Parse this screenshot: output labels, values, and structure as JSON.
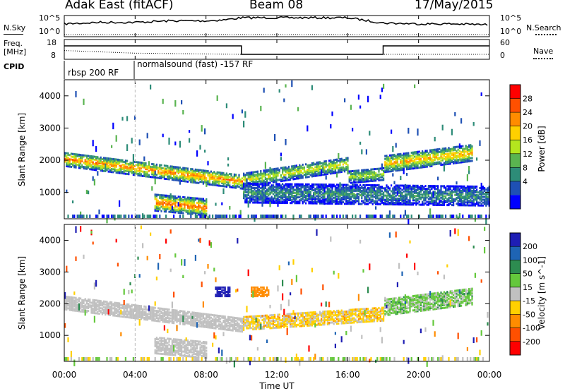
{
  "header": {
    "station": "Adak East (fitACF)",
    "beam": "Beam 08",
    "date": "17/May/2015"
  },
  "side_labels": {
    "nsky": "N.Sky",
    "nsearch": "N.Search",
    "freq_line1": "Freq.",
    "freq_line2": "[MHz]",
    "nave": "Nave",
    "cpid": "CPID"
  },
  "top_panels": {
    "noise_left_ticks": [
      "10^5",
      "10^0"
    ],
    "noise_right_ticks": [
      "10^5",
      "10^0"
    ],
    "freq_ticks": [
      "18",
      "8"
    ],
    "nave_ticks": [
      "60",
      "0"
    ],
    "cpid_labels": [
      "rbsp 200 RF",
      "normalsound (fast) -157 RF"
    ]
  },
  "axes": {
    "ylabel": "Slant Range [km]",
    "xlabel": "Time UT",
    "yticks": [
      "4000",
      "3000",
      "2000",
      "1000"
    ],
    "xticks": [
      "00:00",
      "04:00",
      "08:00",
      "12:00",
      "16:00",
      "20:00",
      "00:00"
    ]
  },
  "colorbars": {
    "power": {
      "label": "Power [dB]",
      "ticks": [
        "28",
        "24",
        "20",
        "16",
        "12",
        "8",
        "4"
      ],
      "colors": [
        "#ff0000",
        "#ff5000",
        "#ff8c00",
        "#ffd000",
        "#b4e61e",
        "#5ab450",
        "#2d8c78",
        "#1e50b4",
        "#0000ff"
      ]
    },
    "velocity": {
      "label": "Velocity [m s^-1]",
      "ticks": [
        "200",
        "100",
        "50",
        "15",
        "-15",
        "-50",
        "-100",
        "-200"
      ],
      "colors": [
        "#1e1eb4",
        "#1e64b4",
        "#2d8c50",
        "#64c83c",
        "#c0c0c0",
        "#ffd000",
        "#ff8c00",
        "#ff5000",
        "#ff0000"
      ]
    }
  },
  "chart_data": [
    {
      "type": "line",
      "title": "N.Sky / N.Search",
      "x": [
        0,
        2,
        4,
        6,
        8,
        9,
        10,
        12,
        14,
        16,
        18,
        20,
        22,
        24
      ],
      "series": [
        {
          "name": "N.Sky",
          "values": [
            3.5,
            4.0,
            4.0,
            4.5,
            4.5,
            4.8,
            5.5,
            5.5,
            5.5,
            5.5,
            3.8,
            3.5,
            3.5,
            3.2
          ]
        }
      ]
    },
    {
      "type": "line",
      "title": "Freq. [MHz] / Nave",
      "x": [
        0,
        4,
        10,
        18,
        24
      ],
      "series": [
        {
          "name": "Freq.",
          "values": [
            15.5,
            15.5,
            9.5,
            15.5,
            15.5
          ]
        },
        {
          "name": "Nave",
          "values": [
            25,
            16,
            12,
            12,
            12
          ]
        }
      ]
    },
    {
      "type": "heatmap",
      "title": "Power",
      "xlabel": "Time UT",
      "ylabel": "Slant Range [km]",
      "xlim": [
        0,
        24
      ],
      "ylim": [
        180,
        4500
      ],
      "bands": [
        {
          "t0": 0,
          "t1": 10,
          "r0": 2050,
          "r1": 1350,
          "w": 220,
          "peak_db": 24
        },
        {
          "t0": 10,
          "t1": 16,
          "r0": 1400,
          "r1": 1900,
          "w": 220,
          "peak_db": 18
        },
        {
          "t0": 16,
          "t1": 18,
          "r0": 1500,
          "r1": 1600,
          "w": 200,
          "peak_db": 16
        },
        {
          "t0": 18,
          "t1": 23,
          "r0": 1900,
          "r1": 2250,
          "w": 260,
          "peak_db": 22
        },
        {
          "t0": 5,
          "t1": 8,
          "r0": 700,
          "r1": 550,
          "w": 250,
          "peak_db": 26
        },
        {
          "t0": 10,
          "t1": 24,
          "r0": 1000,
          "r1": 900,
          "w": 300,
          "peak_db": 10
        }
      ]
    },
    {
      "type": "heatmap",
      "title": "Velocity",
      "xlabel": "Time UT",
      "ylabel": "Slant Range [km]",
      "xlim": [
        0,
        24
      ],
      "ylim": [
        180,
        4500
      ],
      "bands": [
        {
          "t0": 0,
          "t1": 10,
          "r0": 2050,
          "r1": 1350,
          "w": 220,
          "vel": 0
        },
        {
          "t0": 10,
          "t1": 18,
          "r0": 1400,
          "r1": 1700,
          "w": 220,
          "vel": -20
        },
        {
          "t0": 18,
          "t1": 23,
          "r0": 1900,
          "r1": 2250,
          "w": 260,
          "vel": 20
        },
        {
          "t0": 5,
          "t1": 8,
          "r0": 700,
          "r1": 550,
          "w": 250,
          "vel": 0
        },
        {
          "t0": 8.5,
          "t1": 9.3,
          "r0": 2400,
          "r1": 2400,
          "w": 150,
          "vel": 220
        },
        {
          "t0": 10.5,
          "t1": 11.5,
          "r0": 2400,
          "r1": 2400,
          "w": 150,
          "vel": -60
        }
      ]
    }
  ]
}
